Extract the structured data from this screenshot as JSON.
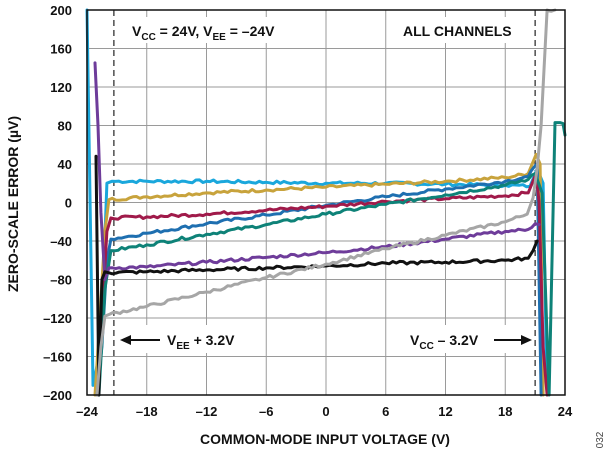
{
  "chart_data": {
    "type": "line",
    "title": "",
    "xlabel": "COMMON-MODE INPUT VOLTAGE (V)",
    "ylabel": "ZERO-SCALE ERROR (µV)",
    "xlim": [
      -24,
      24
    ],
    "ylim": [
      -200,
      200
    ],
    "xticks": [
      -24,
      -18,
      -12,
      -6,
      0,
      6,
      12,
      18,
      24
    ],
    "yticks": [
      -200,
      -160,
      -120,
      -80,
      -40,
      0,
      40,
      80,
      120,
      160,
      200
    ],
    "xtick_labels": [
      "–24",
      "–18",
      "–12",
      "–6",
      "0",
      "6",
      "12",
      "18",
      "24"
    ],
    "ytick_labels": [
      "–200",
      "–160",
      "–120",
      "–80",
      "–40",
      "0",
      "40",
      "80",
      "120",
      "160",
      "200"
    ],
    "grid": true,
    "legend": "none",
    "series": [
      {
        "color": "#1aa7dc",
        "x": [
          -24,
          -23.4,
          -22.6,
          -22,
          -21.5,
          -18,
          -12,
          -6,
          0,
          6,
          12,
          18,
          20.5,
          21.2,
          21.8,
          22.2
        ],
        "y": [
          200,
          -190,
          -150,
          20,
          22,
          22,
          22,
          21,
          20,
          20,
          19,
          18,
          17,
          35,
          20,
          -200
        ]
      },
      {
        "color": "#c8a33c",
        "x": [
          -23.2,
          -22.7,
          -22.2,
          -21.8,
          -18,
          -12,
          -6,
          0,
          6,
          12,
          18,
          20.3,
          21.1,
          21.5,
          21.8
        ],
        "y": [
          -200,
          -120,
          -30,
          3,
          6,
          10,
          13,
          16,
          19,
          22,
          26,
          30,
          50,
          40,
          -200
        ]
      },
      {
        "color": "#1e6fb0",
        "x": [
          -23,
          -22.5,
          -22,
          -21.6,
          -18,
          -12,
          -6,
          0,
          6,
          12,
          18,
          20.3,
          21.2,
          21.6
        ],
        "y": [
          -200,
          -150,
          -60,
          -38,
          -32,
          -22,
          -13,
          -3,
          6,
          14,
          22,
          27,
          40,
          -200
        ]
      },
      {
        "color": "#a01a4a",
        "x": [
          -22.9,
          -22.5,
          -22,
          -21.6,
          -18,
          -12,
          -6,
          0,
          6,
          12,
          18,
          20.3,
          21.1,
          21.4,
          21.8,
          22.2
        ],
        "y": [
          -200,
          -120,
          -30,
          -16,
          -15,
          -12,
          -8,
          -4,
          1,
          4,
          7,
          10,
          30,
          0,
          -150,
          -200
        ]
      },
      {
        "color": "#0e8278",
        "x": [
          -22.8,
          -22.2,
          -21.6,
          -18,
          -12,
          -6,
          0,
          6,
          12,
          18,
          20.3,
          21,
          21.7,
          22.4,
          23,
          23.5,
          23.8,
          24
        ],
        "y": [
          -200,
          -90,
          -50,
          -44,
          -33,
          -23,
          -12,
          -2,
          8,
          18,
          24,
          30,
          10,
          -200,
          83,
          83,
          82,
          70
        ]
      },
      {
        "color": "#6e3c9a",
        "x": [
          -23.2,
          -22.9,
          -22.6,
          -22.2,
          -21.8,
          -18,
          -12,
          -6,
          0,
          6,
          12,
          18,
          20.3,
          21,
          21.4
        ],
        "y": [
          145,
          80,
          -10,
          -80,
          -68,
          -67,
          -62,
          -57,
          -52,
          -46,
          -38,
          -30,
          -28,
          -22,
          -23
        ]
      },
      {
        "color": "#111111",
        "x": [
          -23.1,
          -22.8,
          -22.5,
          -22.2,
          -21.8,
          -18,
          -12,
          -6,
          0,
          6,
          12,
          18,
          20.3,
          20.8,
          21.2
        ],
        "y": [
          48,
          -200,
          -80,
          -72,
          -73,
          -72,
          -70,
          -68,
          -66,
          -63,
          -62,
          -60,
          -58,
          -50,
          -40
        ]
      },
      {
        "color": "#a6a6a6",
        "x": [
          -23,
          -22.6,
          -22.2,
          -21.7,
          -18,
          -12,
          -6,
          0,
          6,
          12,
          18,
          20.2,
          20.8,
          21.2,
          21.6,
          22.2,
          23
        ],
        "y": [
          -200,
          -150,
          -118,
          -116,
          -108,
          -93,
          -78,
          -64,
          -48,
          -34,
          -20,
          -12,
          5,
          35,
          80,
          200,
          200
        ]
      }
    ],
    "boundary_lines": [
      -21.3,
      21.0
    ],
    "annotations": {
      "conditions": {
        "v1": "V",
        "s1": "CC",
        "t1": " = 24V, V",
        "s2": "EE",
        "t2": " = –24V"
      },
      "channels": "ALL CHANNELS",
      "left_limit": {
        "v": "V",
        "sub": "EE",
        "rest": " + 3.2V"
      },
      "right_limit": {
        "v": "V",
        "sub": "CC",
        "rest": " – 3.2V"
      }
    }
  },
  "figure_number": "032"
}
